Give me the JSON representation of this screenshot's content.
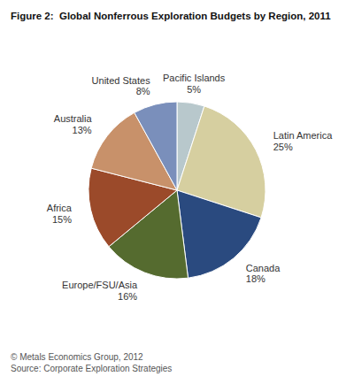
{
  "chart_data": {
    "type": "pie",
    "title": "Figure 2:  Global Nonferrous Exploration Budgets by Region, 2011",
    "categories": [
      "Pacific Islands",
      "Latin America",
      "Canada",
      "Europe/FSU/Asia",
      "Africa",
      "Australia",
      "United States"
    ],
    "values": [
      5,
      25,
      18,
      16,
      15,
      13,
      8
    ],
    "value_labels": [
      "5%",
      "25%",
      "18%",
      "16%",
      "15%",
      "13%",
      "8%"
    ],
    "colors": [
      "#b8c8cc",
      "#d6cfa0",
      "#2a4a7f",
      "#556b2f",
      "#9b4a2a",
      "#c8916a",
      "#7a8fbb"
    ],
    "data_labels": true,
    "annotations": [
      "© Metals Economics Group, 2012",
      "Source: Corporate Exploration Strategies"
    ]
  }
}
